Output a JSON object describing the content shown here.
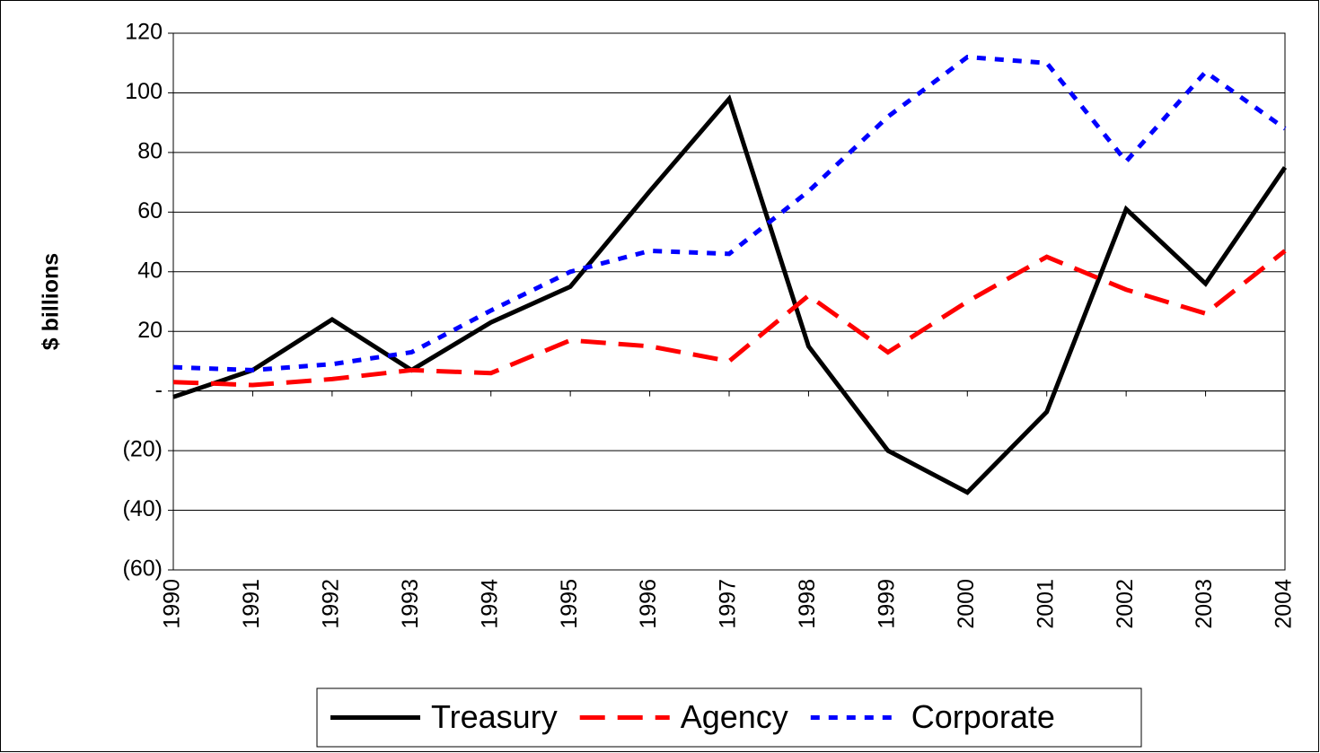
{
  "chart_data": {
    "type": "line",
    "y_label": "$ billions",
    "categories": [
      "1990",
      "1991",
      "1992",
      "1993",
      "1994",
      "1995",
      "1996",
      "1997",
      "1998",
      "1999",
      "2000",
      "2001",
      "2002",
      "2003",
      "2004"
    ],
    "series": [
      {
        "name": "Treasury",
        "color": "#000000",
        "dash": "solid",
        "values": [
          -2,
          7,
          24,
          7,
          23,
          35,
          67,
          98,
          15,
          -20,
          -34,
          -7,
          61,
          36,
          75
        ]
      },
      {
        "name": "Agency",
        "color": "#ff0000",
        "dash": "dash",
        "values": [
          3,
          2,
          4,
          7,
          6,
          17,
          15,
          10,
          32,
          13,
          30,
          45,
          34,
          26,
          47
        ]
      },
      {
        "name": "Corporate",
        "color": "#0000ff",
        "dash": "dot",
        "values": [
          8,
          7,
          9,
          13,
          27,
          40,
          47,
          46,
          67,
          92,
          112,
          110,
          77,
          107,
          88
        ]
      }
    ],
    "ylim": [
      -60,
      120
    ],
    "yticks": [
      120,
      100,
      80,
      60,
      40,
      20,
      {
        "value": 0,
        "label": "-"
      },
      {
        "value": -20,
        "label": "(20)"
      },
      {
        "value": -40,
        "label": "(40)"
      },
      {
        "value": -60,
        "label": "(60)"
      }
    ],
    "grid": true,
    "legend": "bottom"
  }
}
